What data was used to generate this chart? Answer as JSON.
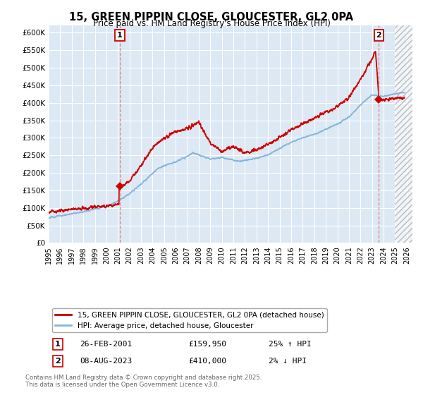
{
  "title": "15, GREEN PIPPIN CLOSE, GLOUCESTER, GL2 0PA",
  "subtitle": "Price paid vs. HM Land Registry's House Price Index (HPI)",
  "ylim": [
    0,
    620000
  ],
  "yticks": [
    0,
    50000,
    100000,
    150000,
    200000,
    250000,
    300000,
    350000,
    400000,
    450000,
    500000,
    550000,
    600000
  ],
  "xlim_start": 1995.0,
  "xlim_end": 2026.5,
  "bg_color": "#dce8f3",
  "grid_color": "#ffffff",
  "red_line_color": "#cc0000",
  "blue_line_color": "#85b5d9",
  "marker1_date": 2001.15,
  "marker1_price": 159950,
  "marker2_date": 2023.6,
  "marker2_price": 410000,
  "legend1": "15, GREEN PIPPIN CLOSE, GLOUCESTER, GL2 0PA (detached house)",
  "legend2": "HPI: Average price, detached house, Gloucester",
  "ann1_date": "26-FEB-2001",
  "ann1_price": "£159,950",
  "ann1_hpi": "25% ↑ HPI",
  "ann2_date": "08-AUG-2023",
  "ann2_price": "£410,000",
  "ann2_hpi": "2% ↓ HPI",
  "footnote": "Contains HM Land Registry data © Crown copyright and database right 2025.\nThis data is licensed under the Open Government Licence v3.0.",
  "future_start": 2025.0,
  "vline_color": "#e08080"
}
